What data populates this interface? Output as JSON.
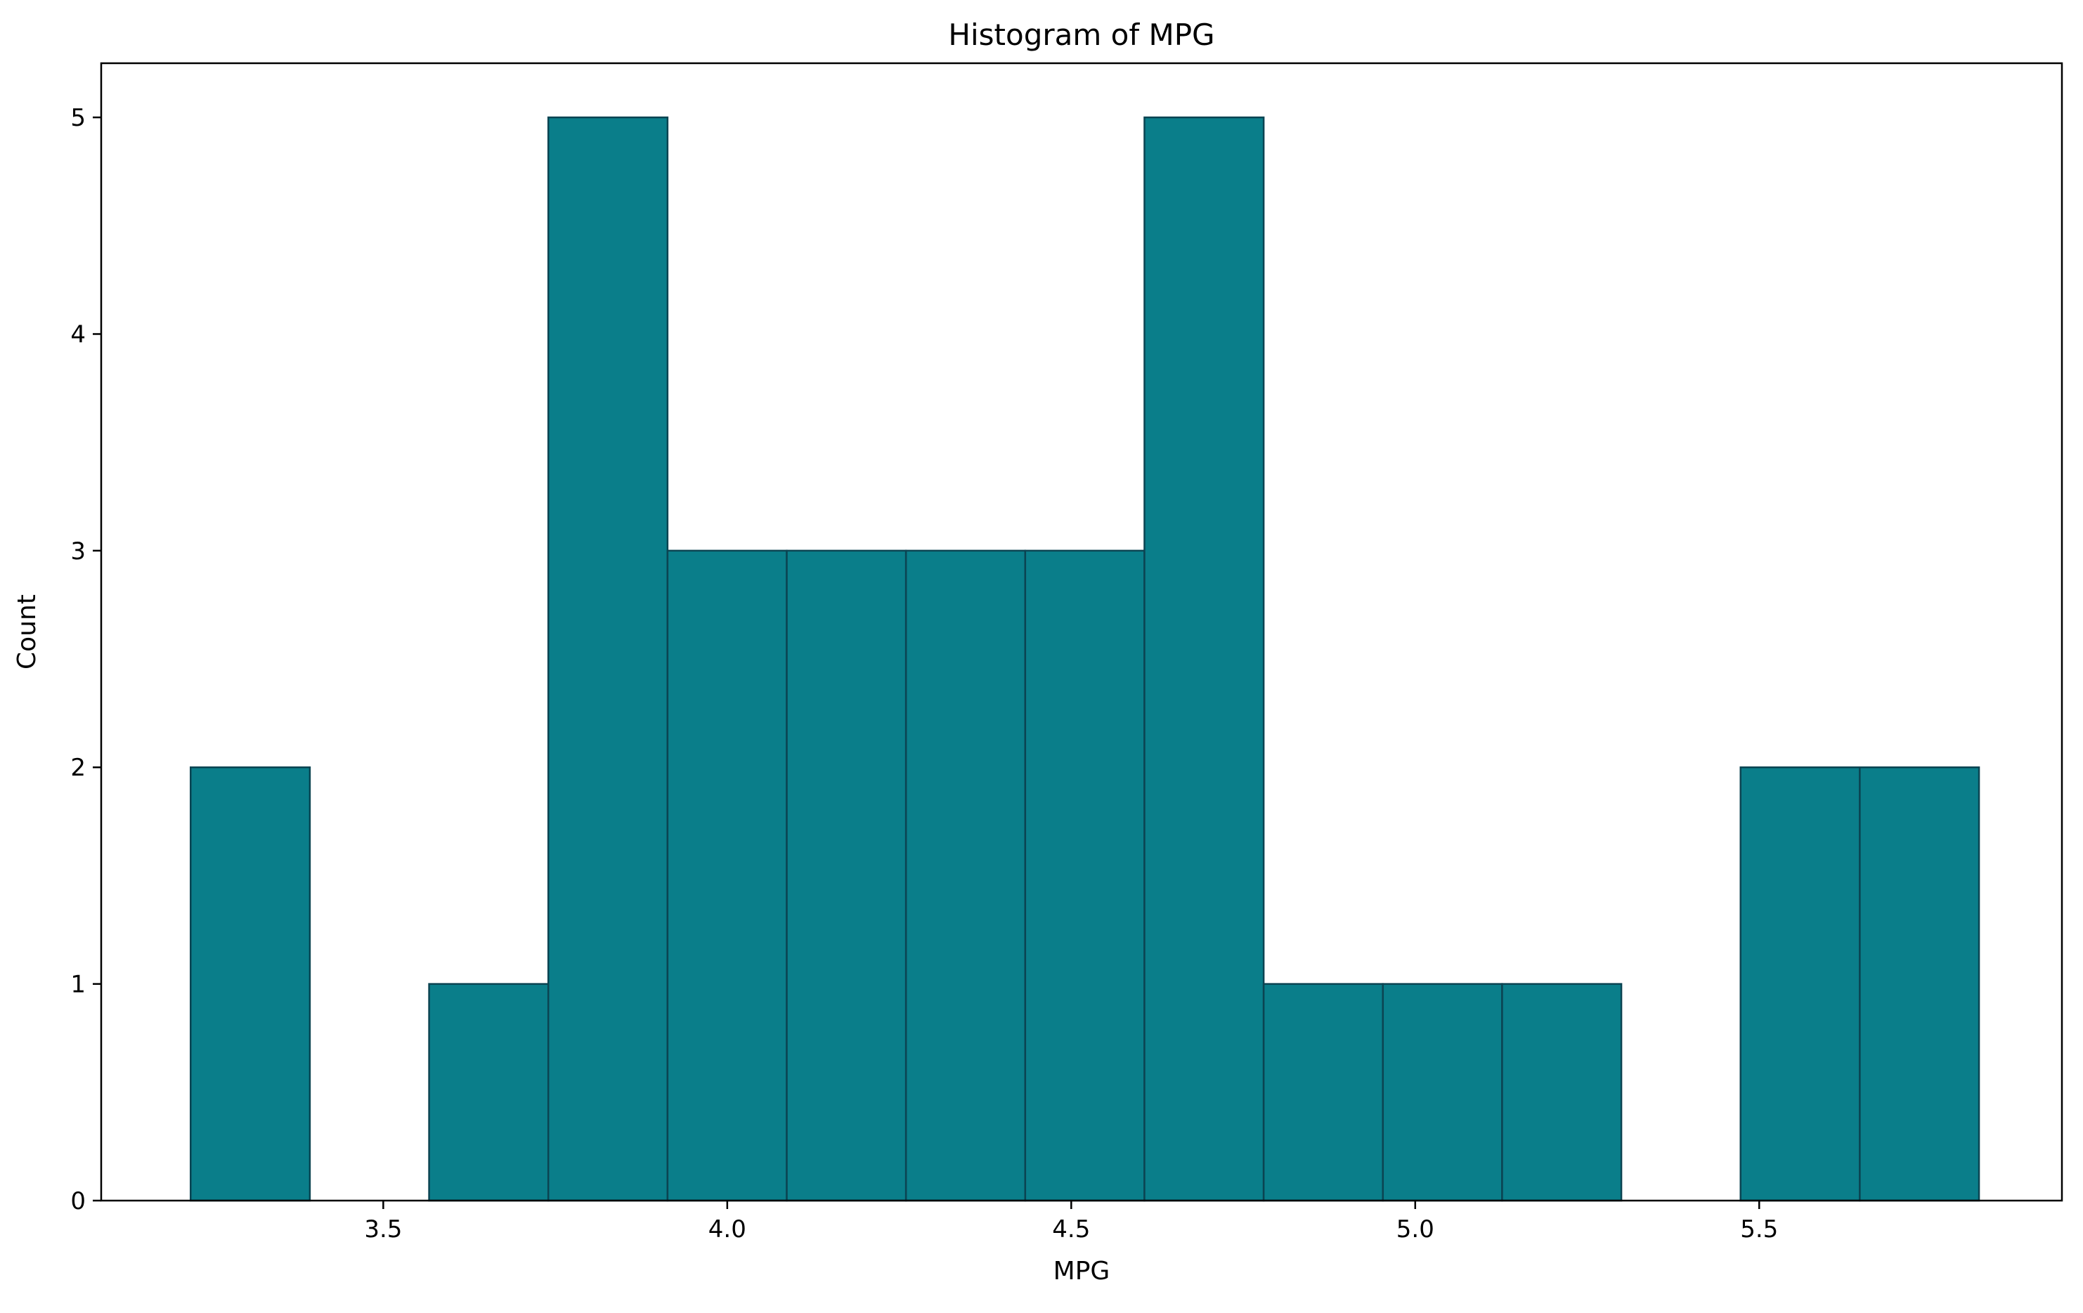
{
  "colors": {
    "bar_fill": "#0a7e8a",
    "bar_edge": "#0b4452",
    "axis": "#000000",
    "background": "#ffffff"
  },
  "chart_data": {
    "type": "histogram",
    "title": "Histogram of MPG",
    "xlabel": "MPG",
    "ylabel": "Count",
    "bin_start": 3.22,
    "bin_width": 0.1733,
    "counts": [
      2,
      0,
      1,
      5,
      3,
      3,
      3,
      3,
      5,
      1,
      1,
      1,
      0,
      2,
      2
    ],
    "xlim": [
      3.09,
      5.94
    ],
    "ylim": [
      0,
      5.25
    ],
    "x_ticks": [
      3.5,
      4.0,
      4.5,
      5.0,
      5.5
    ],
    "x_tick_labels": [
      "3.5",
      "4.0",
      "4.5",
      "5.0",
      "5.5"
    ],
    "y_ticks": [
      0,
      1,
      2,
      3,
      4,
      5
    ],
    "y_tick_labels": [
      "0",
      "1",
      "2",
      "3",
      "4",
      "5"
    ],
    "grid": false,
    "legend": "none"
  }
}
